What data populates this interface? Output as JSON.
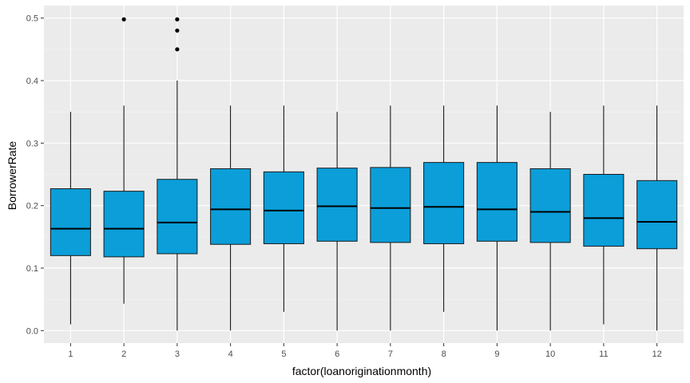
{
  "chart_data": {
    "type": "boxplot",
    "xlabel": "factor(loanoriginationmonth)",
    "ylabel": "BorrowerRate",
    "categories": [
      "1",
      "2",
      "3",
      "4",
      "5",
      "6",
      "7",
      "8",
      "9",
      "10",
      "11",
      "12"
    ],
    "ylim": [
      -0.02,
      0.52
    ],
    "yticks": [
      0.0,
      0.1,
      0.2,
      0.3,
      0.4,
      0.5
    ],
    "ytick_labels": [
      "0.0",
      "0.1",
      "0.2",
      "0.3",
      "0.4",
      "0.5"
    ],
    "grid": true,
    "box_fill": "#0b9ed9",
    "panel_background": "#ebebeb",
    "boxes": [
      {
        "category": "1",
        "whisker_low": 0.01,
        "q1": 0.12,
        "median": 0.163,
        "q3": 0.227,
        "whisker_high": 0.35,
        "outliers": []
      },
      {
        "category": "2",
        "whisker_low": 0.043,
        "q1": 0.118,
        "median": 0.163,
        "q3": 0.223,
        "whisker_high": 0.36,
        "outliers": [
          0.498
        ]
      },
      {
        "category": "3",
        "whisker_low": 0.0,
        "q1": 0.123,
        "median": 0.173,
        "q3": 0.242,
        "whisker_high": 0.4,
        "outliers": [
          0.45,
          0.48,
          0.498
        ]
      },
      {
        "category": "4",
        "whisker_low": 0.0,
        "q1": 0.138,
        "median": 0.194,
        "q3": 0.259,
        "whisker_high": 0.36,
        "outliers": []
      },
      {
        "category": "5",
        "whisker_low": 0.03,
        "q1": 0.139,
        "median": 0.192,
        "q3": 0.254,
        "whisker_high": 0.36,
        "outliers": []
      },
      {
        "category": "6",
        "whisker_low": 0.0,
        "q1": 0.143,
        "median": 0.199,
        "q3": 0.26,
        "whisker_high": 0.35,
        "outliers": []
      },
      {
        "category": "7",
        "whisker_low": 0.0,
        "q1": 0.141,
        "median": 0.196,
        "q3": 0.261,
        "whisker_high": 0.36,
        "outliers": []
      },
      {
        "category": "8",
        "whisker_low": 0.03,
        "q1": 0.139,
        "median": 0.198,
        "q3": 0.269,
        "whisker_high": 0.36,
        "outliers": []
      },
      {
        "category": "9",
        "whisker_low": 0.0,
        "q1": 0.143,
        "median": 0.194,
        "q3": 0.269,
        "whisker_high": 0.36,
        "outliers": []
      },
      {
        "category": "10",
        "whisker_low": 0.0,
        "q1": 0.141,
        "median": 0.19,
        "q3": 0.259,
        "whisker_high": 0.35,
        "outliers": []
      },
      {
        "category": "11",
        "whisker_low": 0.01,
        "q1": 0.135,
        "median": 0.18,
        "q3": 0.25,
        "whisker_high": 0.36,
        "outliers": []
      },
      {
        "category": "12",
        "whisker_low": 0.0,
        "q1": 0.131,
        "median": 0.174,
        "q3": 0.24,
        "whisker_high": 0.36,
        "outliers": []
      }
    ]
  }
}
